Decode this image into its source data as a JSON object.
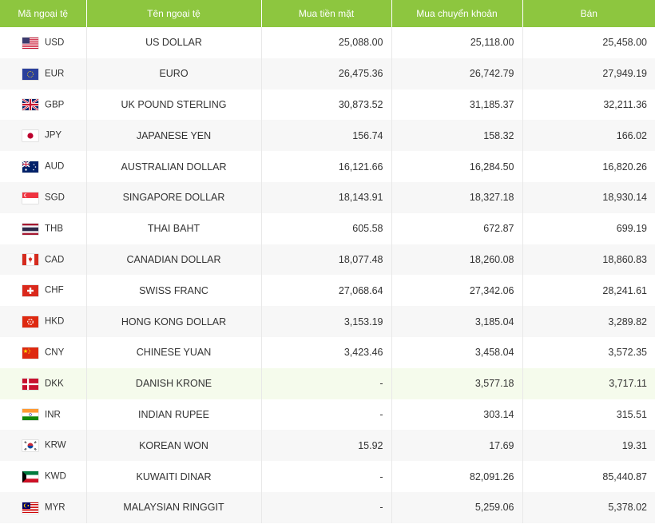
{
  "table": {
    "headers": {
      "code": "Mã ngoại tệ",
      "name": "Tên ngoại tệ",
      "cash_buy": "Mua tiền mặt",
      "transfer_buy": "Mua chuyển khoản",
      "sell": "Bán"
    },
    "rows": [
      {
        "code": "USD",
        "flag": "flag-us-icon",
        "name": "US DOLLAR",
        "cash_buy": "25,088.00",
        "transfer_buy": "25,118.00",
        "sell": "25,458.00"
      },
      {
        "code": "EUR",
        "flag": "flag-eu-icon",
        "name": "EURO",
        "cash_buy": "26,475.36",
        "transfer_buy": "26,742.79",
        "sell": "27,949.19"
      },
      {
        "code": "GBP",
        "flag": "flag-gb-icon",
        "name": "UK POUND STERLING",
        "cash_buy": "30,873.52",
        "transfer_buy": "31,185.37",
        "sell": "32,211.36"
      },
      {
        "code": "JPY",
        "flag": "flag-jp-icon",
        "name": "JAPANESE YEN",
        "cash_buy": "156.74",
        "transfer_buy": "158.32",
        "sell": "166.02"
      },
      {
        "code": "AUD",
        "flag": "flag-au-icon",
        "name": "AUSTRALIAN DOLLAR",
        "cash_buy": "16,121.66",
        "transfer_buy": "16,284.50",
        "sell": "16,820.26"
      },
      {
        "code": "SGD",
        "flag": "flag-sg-icon",
        "name": "SINGAPORE DOLLAR",
        "cash_buy": "18,143.91",
        "transfer_buy": "18,327.18",
        "sell": "18,930.14"
      },
      {
        "code": "THB",
        "flag": "flag-th-icon",
        "name": "THAI BAHT",
        "cash_buy": "605.58",
        "transfer_buy": "672.87",
        "sell": "699.19"
      },
      {
        "code": "CAD",
        "flag": "flag-ca-icon",
        "name": "CANADIAN DOLLAR",
        "cash_buy": "18,077.48",
        "transfer_buy": "18,260.08",
        "sell": "18,860.83"
      },
      {
        "code": "CHF",
        "flag": "flag-ch-icon",
        "name": "SWISS FRANC",
        "cash_buy": "27,068.64",
        "transfer_buy": "27,342.06",
        "sell": "28,241.61"
      },
      {
        "code": "HKD",
        "flag": "flag-hk-icon",
        "name": "HONG KONG DOLLAR",
        "cash_buy": "3,153.19",
        "transfer_buy": "3,185.04",
        "sell": "3,289.82"
      },
      {
        "code": "CNY",
        "flag": "flag-cn-icon",
        "name": "CHINESE YUAN",
        "cash_buy": "3,423.46",
        "transfer_buy": "3,458.04",
        "sell": "3,572.35"
      },
      {
        "code": "DKK",
        "flag": "flag-dk-icon",
        "name": "DANISH KRONE",
        "cash_buy": "-",
        "transfer_buy": "3,577.18",
        "sell": "3,717.11"
      },
      {
        "code": "INR",
        "flag": "flag-in-icon",
        "name": "INDIAN RUPEE",
        "cash_buy": "-",
        "transfer_buy": "303.14",
        "sell": "315.51"
      },
      {
        "code": "KRW",
        "flag": "flag-kr-icon",
        "name": "KOREAN WON",
        "cash_buy": "15.92",
        "transfer_buy": "17.69",
        "sell": "19.31"
      },
      {
        "code": "KWD",
        "flag": "flag-kw-icon",
        "name": "KUWAITI DINAR",
        "cash_buy": "-",
        "transfer_buy": "82,091.26",
        "sell": "85,440.87"
      },
      {
        "code": "MYR",
        "flag": "flag-my-icon",
        "name": "MALAYSIAN RINGGIT",
        "cash_buy": "-",
        "transfer_buy": "5,259.06",
        "sell": "5,378.02"
      }
    ]
  },
  "colors": {
    "header_bg": "#8dc63f",
    "header_text": "#ffffff",
    "row_alt_bg": "#f7f7f7",
    "row_hover_bg": "#f5fbec"
  }
}
